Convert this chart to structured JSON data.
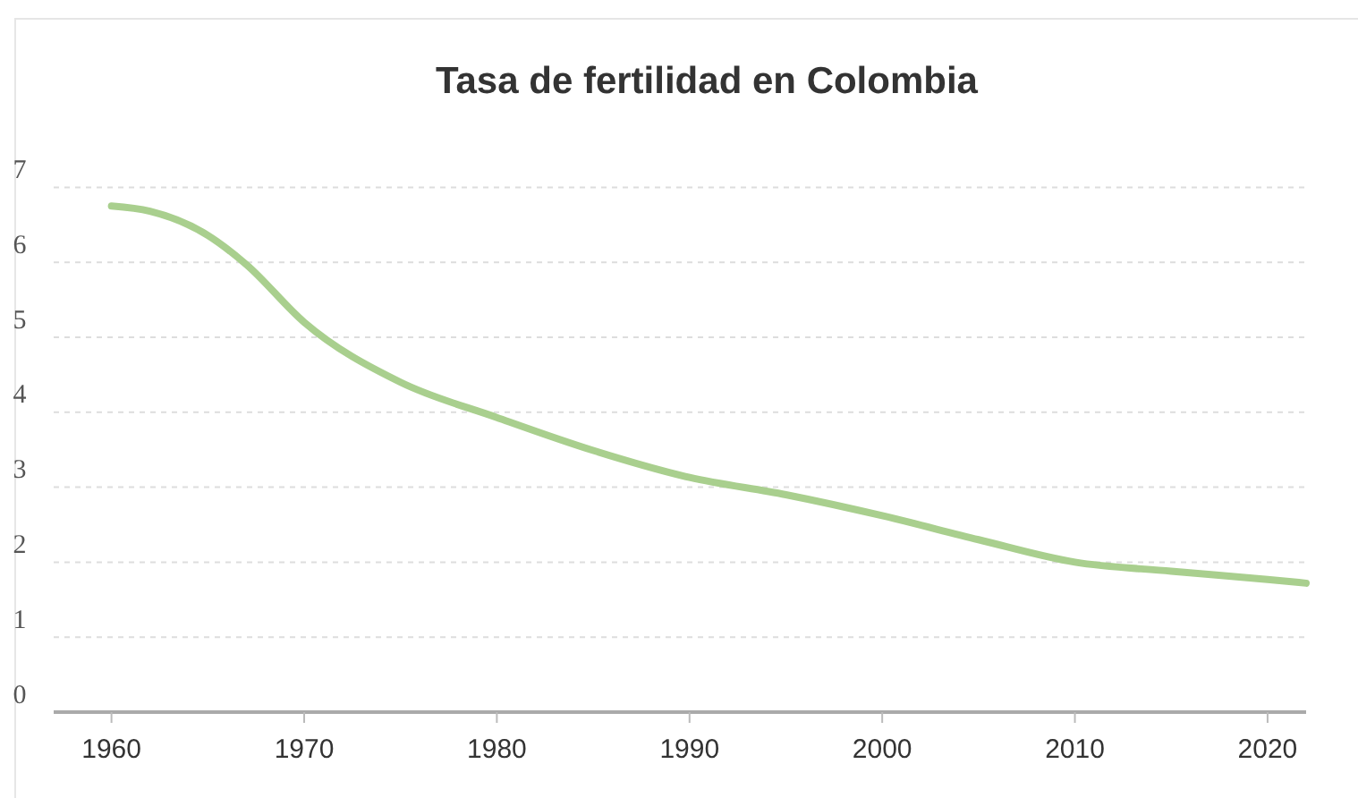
{
  "chart_data": {
    "type": "line",
    "title": "Tasa de fertilidad en Colombia",
    "x": [
      1960,
      1962,
      1965,
      1967,
      1970,
      1975,
      1980,
      1985,
      1990,
      1995,
      2000,
      2005,
      2010,
      2015,
      2020,
      2022
    ],
    "series": [
      {
        "color": "#a9cf8e",
        "values": [
          6.75,
          6.68,
          6.36,
          5.97,
          5.2,
          4.4,
          3.93,
          3.49,
          3.13,
          2.9,
          2.62,
          2.3,
          2.0,
          1.88,
          1.77,
          1.72
        ]
      }
    ],
    "xlim": [
      1957,
      2022
    ],
    "xticks": [
      1960,
      1970,
      1980,
      1990,
      2000,
      2010,
      2020
    ],
    "ylim": [
      0,
      7
    ],
    "yticks": [
      0,
      1,
      2,
      3,
      4,
      5,
      6,
      7
    ],
    "grid": "y",
    "marker": "none",
    "line_style": "solid"
  }
}
